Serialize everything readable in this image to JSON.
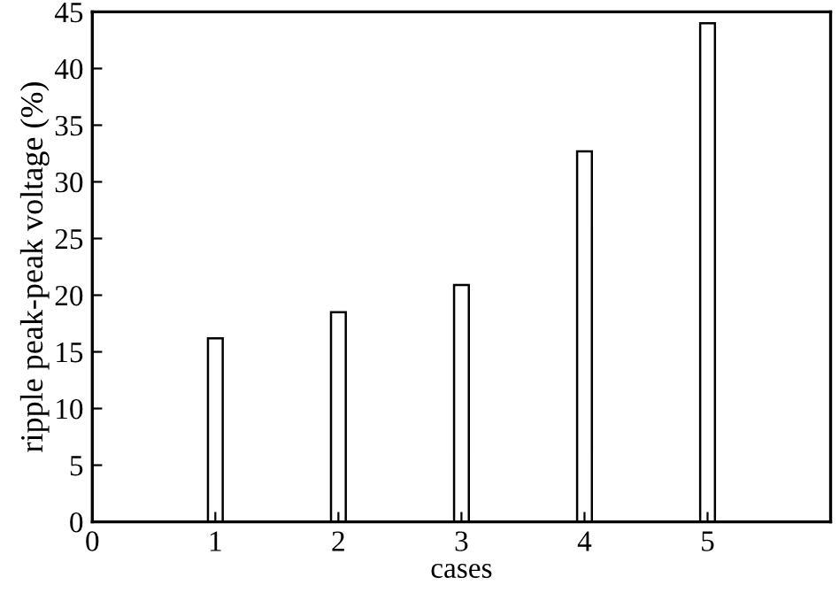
{
  "chart_data": {
    "type": "bar",
    "xlabel": "cases",
    "ylabel": "ripple peak-peak voltage (%)",
    "x": [
      1,
      2,
      3,
      4,
      5
    ],
    "values": [
      16.2,
      18.5,
      20.9,
      32.7,
      44.0
    ],
    "color": "#ffffff",
    "xlim": [
      0,
      6
    ],
    "xticks": [
      0,
      1,
      2,
      3,
      4,
      5
    ],
    "ylim": [
      0,
      45
    ],
    "yticks": [
      0,
      5,
      10,
      15,
      20,
      25,
      30,
      35,
      40,
      45
    ],
    "grid": false
  }
}
